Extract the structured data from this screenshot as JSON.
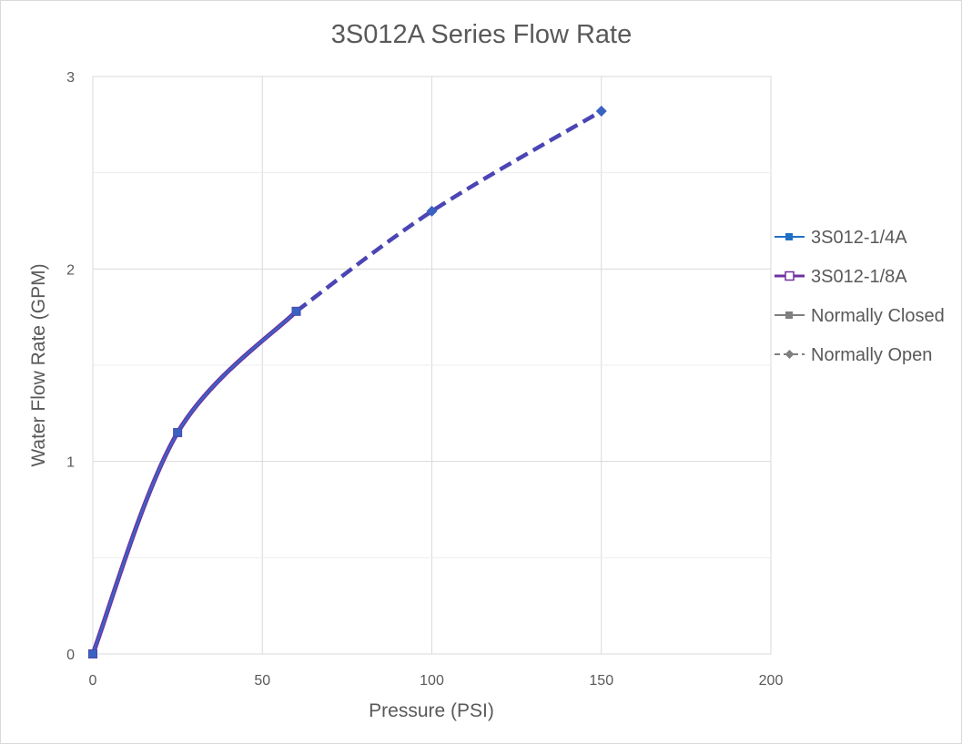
{
  "chart_data": {
    "type": "line",
    "title": "3S012A Series Flow Rate",
    "xlabel": "Pressure (PSI)",
    "ylabel": "Water Flow Rate (GPM)",
    "xlim": [
      0,
      200
    ],
    "ylim": [
      0,
      3
    ],
    "xticks": [
      "0",
      "50",
      "100",
      "150",
      "200"
    ],
    "yticks": [
      "0",
      "1",
      "2",
      "3"
    ],
    "grid": true,
    "legend_position": "right",
    "series": [
      {
        "name": "3S012-1/4A",
        "color": "#1f6fc5",
        "marker": "square",
        "line": "solid",
        "x": [
          0,
          25,
          60
        ],
        "y": [
          0,
          1.15,
          1.78
        ]
      },
      {
        "name": "3S012-1/8A",
        "color": "#7030a0",
        "marker": "square-open",
        "line": "solid",
        "x": [
          0,
          25,
          60
        ],
        "y": [
          0,
          1.15,
          1.78
        ]
      },
      {
        "name": "Normally Closed",
        "color": "#808080",
        "marker": "square",
        "line": "solid",
        "x": [
          0,
          25,
          60
        ],
        "y": [
          0,
          1.15,
          1.78
        ]
      },
      {
        "name": "Normally Open",
        "color": "#808080",
        "marker": "diamond",
        "line": "dashed",
        "x": [
          60,
          100,
          150
        ],
        "y": [
          1.78,
          2.3,
          2.82
        ]
      }
    ],
    "plot_series_colors": {
      "solid_under": "#7030a0",
      "solid_over": "#3a62c2",
      "dashed": "#4b45b5",
      "marker": "#3a62c2"
    }
  }
}
